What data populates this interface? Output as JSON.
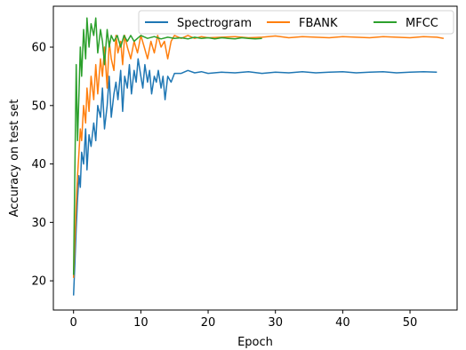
{
  "chart_data": {
    "type": "line",
    "title": "",
    "xlabel": "Epoch",
    "ylabel": "Accuracy on test set",
    "xlim": [
      -3,
      57
    ],
    "ylim": [
      15,
      67
    ],
    "xticks": [
      0,
      10,
      20,
      30,
      40,
      50
    ],
    "yticks": [
      20,
      30,
      40,
      50,
      60
    ],
    "grid": false,
    "legend_position": "top-right",
    "legend_columns": 3,
    "series": [
      {
        "name": "Spectrogram",
        "color": "#1f77b4",
        "x": [
          0,
          0.2,
          0.4,
          0.6,
          0.8,
          1,
          1.2,
          1.5,
          1.8,
          2,
          2.3,
          2.6,
          3,
          3.3,
          3.6,
          4,
          4.3,
          4.6,
          5,
          5.3,
          5.6,
          6,
          6.3,
          6.6,
          7,
          7.3,
          7.6,
          8,
          8.3,
          8.6,
          9,
          9.3,
          9.6,
          10,
          10.3,
          10.6,
          11,
          11.3,
          11.6,
          12,
          12.3,
          12.6,
          13,
          13.3,
          13.6,
          14,
          14.5,
          15,
          16,
          17,
          18,
          19,
          20,
          22,
          24,
          26,
          28,
          30,
          32,
          34,
          36,
          38,
          40,
          42,
          44,
          46,
          48,
          50,
          52,
          54
        ],
        "y": [
          17.5,
          23,
          29,
          34,
          38,
          36,
          42,
          40,
          46,
          39,
          45,
          43,
          47,
          44,
          50,
          48,
          53,
          46,
          50,
          55,
          48,
          52,
          54,
          51,
          56,
          49,
          55,
          53,
          57,
          52,
          56,
          54,
          58,
          55,
          53,
          57,
          54,
          56,
          52,
          55,
          54,
          56,
          53,
          55,
          51,
          55,
          54,
          55.5,
          55.5,
          56,
          55.6,
          55.8,
          55.5,
          55.7,
          55.6,
          55.8,
          55.5,
          55.7,
          55.6,
          55.8,
          55.6,
          55.7,
          55.8,
          55.6,
          55.7,
          55.8,
          55.6,
          55.7,
          55.8,
          55.7
        ]
      },
      {
        "name": "FBANK",
        "color": "#ff7f0e",
        "x": [
          0,
          0.2,
          0.4,
          0.6,
          0.8,
          1,
          1.2,
          1.5,
          1.8,
          2,
          2.3,
          2.6,
          3,
          3.3,
          3.6,
          4,
          4.3,
          4.6,
          5,
          5.3,
          5.6,
          6,
          6.3,
          6.6,
          7,
          7.3,
          7.6,
          8,
          8.5,
          9,
          9.5,
          10,
          10.5,
          11,
          11.5,
          12,
          12.5,
          13,
          13.5,
          14,
          14.5,
          15,
          16,
          17,
          18,
          19,
          20,
          22,
          24,
          26,
          28,
          30,
          32,
          34,
          36,
          38,
          40,
          42,
          44,
          46,
          48,
          50,
          52,
          54,
          55
        ],
        "y": [
          20.5,
          27,
          33,
          38,
          42,
          46,
          44,
          50,
          47,
          53,
          49,
          55,
          51,
          57,
          52,
          58,
          55,
          60,
          53,
          61,
          58,
          56,
          62,
          59,
          61,
          57,
          62,
          60,
          58,
          61,
          59,
          62,
          60,
          58,
          61,
          59,
          62,
          60,
          61,
          58,
          61,
          62,
          61.5,
          62,
          61.5,
          61.8,
          61.6,
          61.7,
          61.8,
          61.6,
          61.7,
          61.9,
          61.6,
          61.8,
          61.7,
          61.6,
          61.8,
          61.7,
          61.6,
          61.8,
          61.7,
          61.6,
          61.8,
          61.7,
          61.5
        ]
      },
      {
        "name": "MFCC",
        "color": "#2ca02c",
        "x": [
          0,
          0.2,
          0.4,
          0.6,
          0.8,
          1,
          1.2,
          1.5,
          1.8,
          2,
          2.3,
          2.6,
          3,
          3.3,
          3.6,
          4,
          4.3,
          4.6,
          5,
          5.3,
          5.6,
          6,
          6.5,
          7,
          7.5,
          8,
          8.5,
          9,
          9.5,
          10,
          11,
          12,
          13,
          14,
          15,
          16,
          17,
          18,
          19,
          20,
          21,
          22,
          23,
          24,
          25,
          26,
          27,
          28
        ],
        "y": [
          21,
          39,
          57,
          44,
          52,
          60,
          55,
          63,
          58,
          65,
          60,
          64,
          62,
          65,
          59,
          63,
          61,
          57,
          63,
          60,
          62,
          61,
          62,
          60,
          62,
          61,
          62,
          61,
          61.5,
          62,
          61.5,
          61.8,
          61.4,
          61.7,
          61.5,
          61.6,
          61.4,
          61.7,
          61.5,
          61.6,
          61.4,
          61.6,
          61.5,
          61.4,
          61.6,
          61.5,
          61.4,
          61.5
        ]
      }
    ]
  }
}
